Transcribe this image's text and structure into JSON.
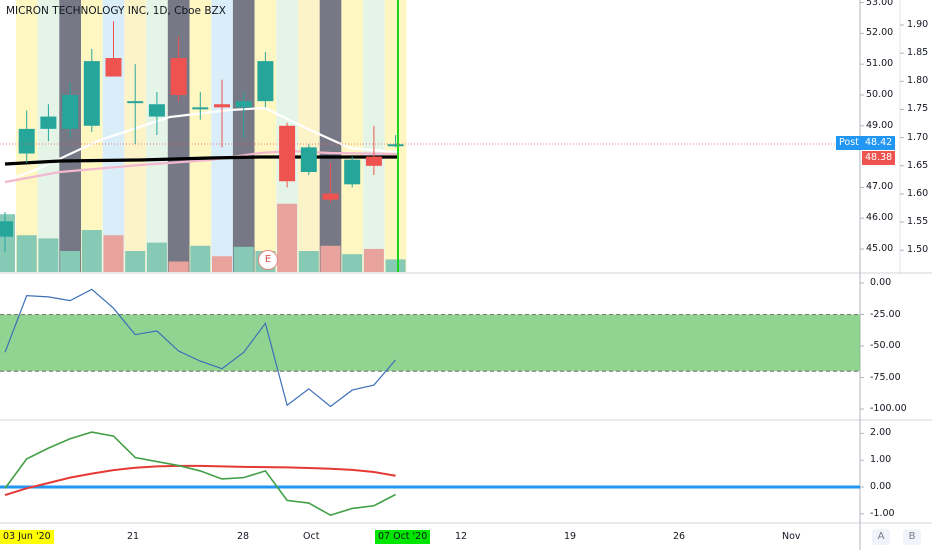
{
  "header": {
    "symbol_title": "MICRON TECHNOLOGY INC, 1D, Cboe BZX"
  },
  "price_axis": {
    "left_labels": [
      "53.00",
      "52.00",
      "51.00",
      "50.00",
      "49.00",
      "47.00",
      "46.00",
      "45.00"
    ],
    "left_values": [
      53,
      52,
      51,
      50,
      49,
      47,
      46,
      45
    ],
    "right_labels": [
      "1.90",
      "1.85",
      "1.80",
      "1.75",
      "1.70",
      "1.65",
      "1.60",
      "1.55",
      "1.50"
    ],
    "right_values": [
      1.9,
      1.85,
      1.8,
      1.75,
      1.7,
      1.65,
      1.6,
      1.55,
      1.5
    ],
    "post_label": "Post",
    "post_price": "48.42",
    "last_price": "48.38",
    "post_color": "#2196f3",
    "last_color": "#ef5350"
  },
  "osc1_axis": {
    "labels": [
      "0.00",
      "-25.00",
      "-50.00",
      "-75.00",
      "-100.00"
    ],
    "values": [
      0,
      -25,
      -50,
      -75,
      -100
    ]
  },
  "osc2_axis": {
    "labels": [
      "2.00",
      "1.00",
      "0.00",
      "-1.00"
    ],
    "values": [
      2,
      1,
      0,
      -1
    ]
  },
  "time_axis": {
    "labels": [
      "21",
      "28",
      "Oct",
      "12",
      "19",
      "26",
      "Nov"
    ],
    "start_badge": "03 Jun '20",
    "end_badge": "07 Oct '20",
    "start_badge_color": "#ffff00",
    "end_badge_color": "#00e600"
  },
  "earnings_marker": "E",
  "corner_buttons": {
    "auto": "A",
    "log": "B"
  },
  "chart_data": {
    "type": "candlestick",
    "candles": [
      {
        "o": 45.4,
        "h": 46.2,
        "l": 44.9,
        "c": 45.9
      },
      {
        "o": 48.1,
        "h": 49.5,
        "l": 47.8,
        "c": 48.9
      },
      {
        "o": 48.9,
        "h": 49.7,
        "l": 48.5,
        "c": 49.3
      },
      {
        "o": 48.9,
        "h": 50.4,
        "l": 48.6,
        "c": 50.0
      },
      {
        "o": 49.0,
        "h": 51.5,
        "l": 48.8,
        "c": 51.1
      },
      {
        "o": 51.2,
        "h": 52.4,
        "l": 50.6,
        "c": 50.6
      },
      {
        "o": 49.8,
        "h": 51.0,
        "l": 48.4,
        "c": 49.8
      },
      {
        "o": 49.3,
        "h": 50.1,
        "l": 48.7,
        "c": 49.7
      },
      {
        "o": 51.2,
        "h": 51.9,
        "l": 49.8,
        "c": 50.0
      },
      {
        "o": 49.6,
        "h": 50.1,
        "l": 49.2,
        "c": 49.6
      },
      {
        "o": 49.7,
        "h": 50.5,
        "l": 48.3,
        "c": 49.6
      },
      {
        "o": 49.6,
        "h": 50.1,
        "l": 48.6,
        "c": 49.8
      },
      {
        "o": 49.8,
        "h": 51.4,
        "l": 49.6,
        "c": 51.1
      },
      {
        "o": 49.0,
        "h": 49.1,
        "l": 47.0,
        "c": 47.2
      },
      {
        "o": 47.5,
        "h": 48.4,
        "l": 47.4,
        "c": 48.3
      },
      {
        "o": 46.8,
        "h": 47.8,
        "l": 46.5,
        "c": 46.6
      },
      {
        "o": 47.1,
        "h": 48.0,
        "l": 47.0,
        "c": 47.9
      },
      {
        "o": 48.0,
        "h": 49.0,
        "l": 47.4,
        "c": 47.7
      },
      {
        "o": 48.4,
        "h": 48.7,
        "l": 48.3,
        "c": 48.4
      }
    ],
    "volumes": [
      0.55,
      0.35,
      0.32,
      0.2,
      0.4,
      0.35,
      0.2,
      0.28,
      0.1,
      0.25,
      0.15,
      0.24,
      0.2,
      0.65,
      0.2,
      0.25,
      0.17,
      0.22,
      0.12
    ],
    "osc1": [
      -55,
      -10,
      -11,
      -14,
      -5,
      -20,
      -41,
      -38,
      -54,
      -62,
      -68,
      -55,
      -32,
      -97,
      -84,
      -98,
      -85,
      -81,
      -61
    ],
    "osc1_band": [
      -25,
      -70
    ],
    "osc2_fast": [
      -0.05,
      1.05,
      1.45,
      1.8,
      2.05,
      1.9,
      1.1,
      0.95,
      0.8,
      0.6,
      0.3,
      0.35,
      0.6,
      -0.5,
      -0.6,
      -1.05,
      -0.8,
      -0.7,
      -0.28
    ],
    "osc2_slow": [
      -0.3,
      -0.05,
      0.15,
      0.35,
      0.5,
      0.63,
      0.72,
      0.77,
      0.79,
      0.79,
      0.77,
      0.75,
      0.74,
      0.73,
      0.71,
      0.68,
      0.64,
      0.56,
      0.42
    ],
    "osc2_zero": 0
  }
}
